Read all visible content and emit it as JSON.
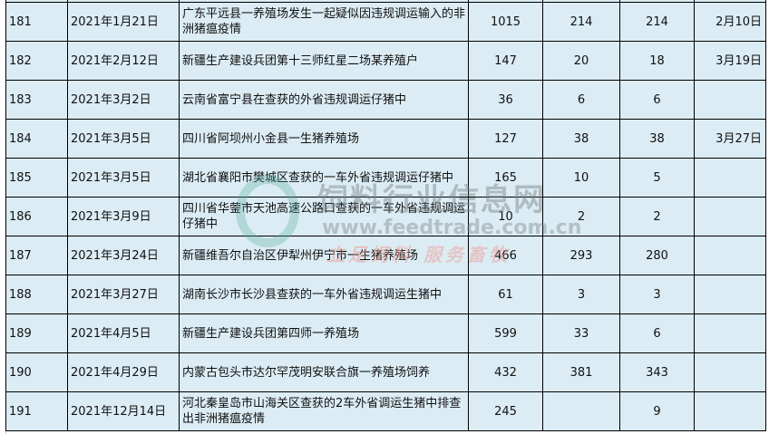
{
  "rows": [
    {
      "id": "",
      "date": "",
      "desc": "",
      "a": "",
      "b": "",
      "c": "",
      "end": ""
    },
    {
      "id": "181",
      "date": "2021年1月21日",
      "desc": "广东平远县一养殖场发生一起疑似因违规调运输入的非洲猪瘟疫情",
      "a": "1015",
      "b": "214",
      "c": "214",
      "end": "2月10日"
    },
    {
      "id": "182",
      "date": "2021年2月12日",
      "desc": "新疆生产建设兵团第十三师红星二场某养殖户",
      "a": "147",
      "b": "20",
      "c": "18",
      "end": "3月19日"
    },
    {
      "id": "183",
      "date": "2021年3月2日",
      "desc": "云南省富宁县在查获的外省违规调运仔猪中",
      "a": "36",
      "b": "6",
      "c": "6",
      "end": ""
    },
    {
      "id": "184",
      "date": "2021年3月5日",
      "desc": "四川省阿坝州小金县一生猪养殖场",
      "a": "127",
      "b": "38",
      "c": "38",
      "end": "3月27日"
    },
    {
      "id": "185",
      "date": "2021年3月5日",
      "desc": "湖北省襄阳市樊城区查获的一车外省违规调运仔猪中",
      "a": "165",
      "b": "10",
      "c": "5",
      "end": ""
    },
    {
      "id": "186",
      "date": "2021年3月9日",
      "desc": "四川省华蓥市天池高速公路口查获的一车外省违规调运仔猪中",
      "a": "10",
      "b": "2",
      "c": "2",
      "end": ""
    },
    {
      "id": "187",
      "date": "2021年3月24日",
      "desc": "新疆维吾尔自治区伊犁州伊宁市一生猪养殖场",
      "a": "466",
      "b": "293",
      "c": "280",
      "end": ""
    },
    {
      "id": "188",
      "date": "2021年3月27日",
      "desc": "湖南长沙市长沙县查获的一车外省违规调运生猪中",
      "a": "61",
      "b": "3",
      "c": "3",
      "end": ""
    },
    {
      "id": "189",
      "date": "2021年4月5日",
      "desc": "新疆生产建设兵团第四师一养殖场",
      "a": "599",
      "b": "33",
      "c": "6",
      "end": ""
    },
    {
      "id": "190",
      "date": "2021年4月29日",
      "desc": "内蒙古包头市达尔罕茂明安联合旗一养殖场饲养",
      "a": "432",
      "b": "381",
      "c": "343",
      "end": ""
    },
    {
      "id": "191",
      "date": "2021年12月14日",
      "desc": "河北秦皇岛市山海关区查获的2车外省调运生猪中排查出非洲猪瘟疫情",
      "a": "245",
      "b": "",
      "c": "9",
      "end": ""
    }
  ],
  "watermark": {
    "title": "饲料行业信息网",
    "url": "www.feedtrade.com.cn",
    "slogan": "立足饲料 服务畜牧"
  },
  "colors": {
    "cell_bg": "#dbecf4",
    "border": "#000000"
  }
}
